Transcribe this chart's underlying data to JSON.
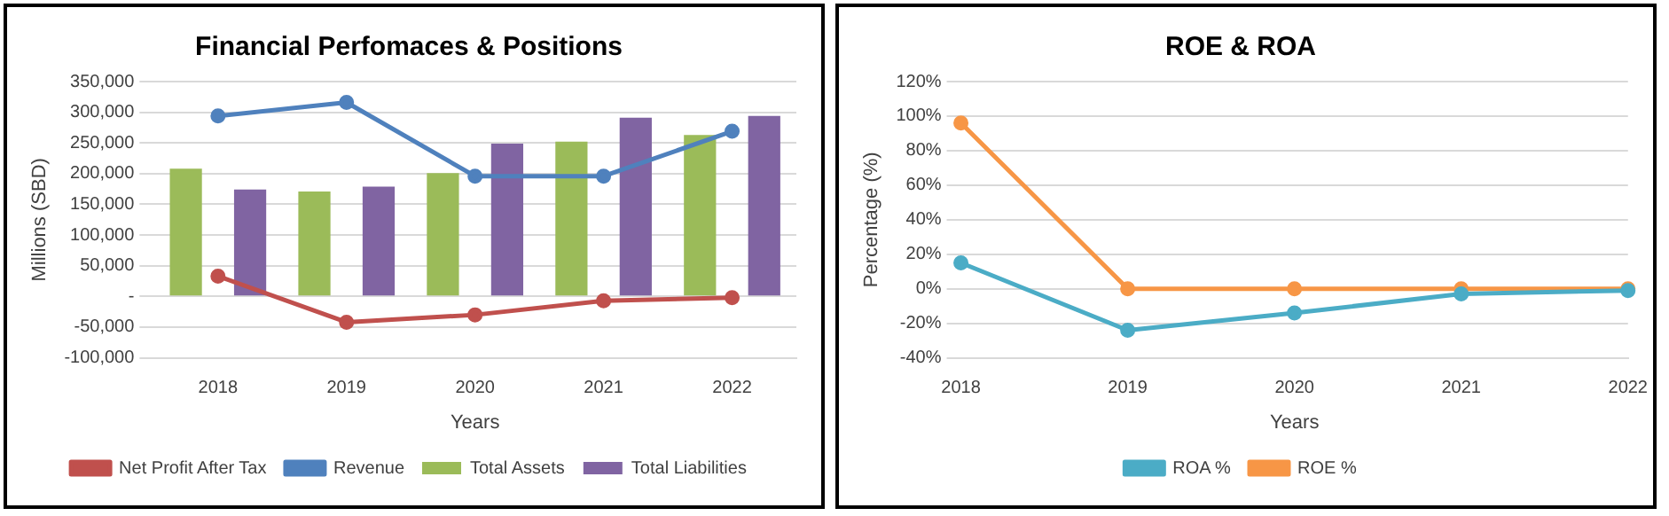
{
  "chart_data": [
    {
      "type": "bar",
      "title": "Financial Perfomaces & Positions",
      "xlabel": "Years",
      "ylabel": "Millions (SBD)",
      "categories": [
        "2018",
        "2019",
        "2020",
        "2021",
        "2022"
      ],
      "series": [
        {
          "name": "Total Assets",
          "type": "bar",
          "color": "#9bbb59",
          "values": [
            208000,
            171000,
            201000,
            252000,
            263000
          ]
        },
        {
          "name": "Total Liabilities",
          "type": "bar",
          "color": "#8064a2",
          "values": [
            174000,
            179000,
            249000,
            291000,
            294000
          ]
        },
        {
          "name": "Revenue",
          "type": "line",
          "color": "#4f81bd",
          "values": [
            294000,
            316000,
            196000,
            196000,
            269000
          ]
        },
        {
          "name": "Net Profit After Tax",
          "type": "line",
          "color": "#c0504d",
          "values": [
            33000,
            -42000,
            -30000,
            -7000,
            -2000
          ]
        }
      ],
      "ylim": [
        -100000,
        350000
      ],
      "yticks": [
        {
          "value": -100000,
          "label": "-100,000"
        },
        {
          "value": -50000,
          "label": "-50,000"
        },
        {
          "value": 0,
          "label": "-"
        },
        {
          "value": 50000,
          "label": "50,000"
        },
        {
          "value": 100000,
          "label": "100,000"
        },
        {
          "value": 150000,
          "label": "150,000"
        },
        {
          "value": 200000,
          "label": "200,000"
        },
        {
          "value": 250000,
          "label": "250,000"
        },
        {
          "value": 300000,
          "label": "300,000"
        },
        {
          "value": 350000,
          "label": "350,000"
        }
      ],
      "grid": "y",
      "legend": "bottom",
      "marker": "circle"
    },
    {
      "type": "line",
      "title": "ROE & ROA",
      "xlabel": "Years",
      "ylabel": "Percentage (%)",
      "categories": [
        "2018",
        "2019",
        "2020",
        "2021",
        "2022"
      ],
      "series": [
        {
          "name": "ROE %",
          "color": "#f79646",
          "values": [
            96,
            0,
            0,
            0,
            0
          ]
        },
        {
          "name": "ROA %",
          "color": "#4bacc6",
          "values": [
            15,
            -24,
            -14,
            -3,
            -1
          ]
        }
      ],
      "ylim": [
        -40,
        120
      ],
      "yticks": [
        {
          "value": -40,
          "label": "-40%"
        },
        {
          "value": -20,
          "label": "-20%"
        },
        {
          "value": 0,
          "label": "0%"
        },
        {
          "value": 20,
          "label": "20%"
        },
        {
          "value": 40,
          "label": "40%"
        },
        {
          "value": 60,
          "label": "60%"
        },
        {
          "value": 80,
          "label": "80%"
        },
        {
          "value": 100,
          "label": "100%"
        },
        {
          "value": 120,
          "label": "120%"
        }
      ],
      "grid": "y",
      "legend": "bottom",
      "marker": "circle"
    }
  ]
}
